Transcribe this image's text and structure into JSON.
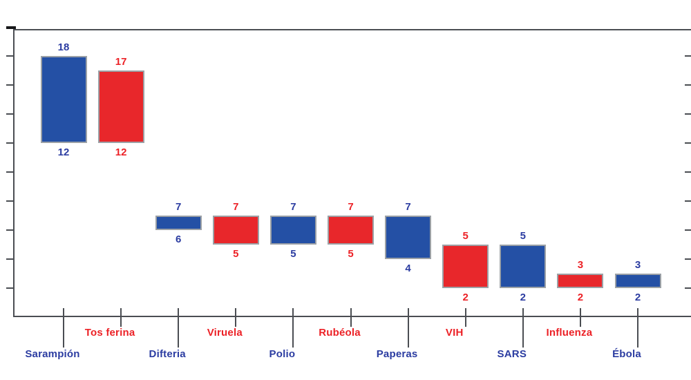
{
  "chart": {
    "background": "#ffffff",
    "frame_color": "#4a4d52",
    "bar_border_color": "#9ca1a6",
    "bar_blue": "#2450a5",
    "bar_red": "#e8272b",
    "text_blue": "#2b3ca1",
    "text_red": "#ec2126"
  },
  "chart_data": {
    "type": "bar",
    "subtype": "floating_range_columns",
    "title": "",
    "xlabel": "",
    "ylabel": "",
    "ylim": [
      0,
      19.8
    ],
    "yticks": [
      2,
      4,
      6,
      8,
      10,
      12,
      14,
      16,
      18
    ],
    "ytick_labels_visible": false,
    "xtick_labels_visible": true,
    "grid": false,
    "legend_position": "none",
    "categories": [
      "Sarampión",
      "Tos ferina",
      "Difteria",
      "Viruela",
      "Polio",
      "Rubéola",
      "Paperas",
      "VIH",
      "SARS",
      "Influenza",
      "Ébola"
    ],
    "series": [
      {
        "name": "range",
        "bars": [
          {
            "label": "Sarampión",
            "low": 12,
            "high": 18,
            "color": "blue",
            "low_text": "12",
            "high_text": "18"
          },
          {
            "label": "Tos ferina",
            "low": 12,
            "high": 17,
            "color": "red",
            "low_text": "12",
            "high_text": "17"
          },
          {
            "label": "Difteria",
            "low": 6,
            "high": 7,
            "color": "blue",
            "low_text": "6",
            "high_text": "7"
          },
          {
            "label": "Viruela",
            "low": 5,
            "high": 7,
            "color": "red",
            "low_text": "5",
            "high_text": "7"
          },
          {
            "label": "Polio",
            "low": 5,
            "high": 7,
            "color": "blue",
            "low_text": "5",
            "high_text": "7"
          },
          {
            "label": "Rubéola",
            "low": 5,
            "high": 7,
            "color": "red",
            "low_text": "5",
            "high_text": "7"
          },
          {
            "label": "Paperas",
            "low": 4,
            "high": 7,
            "color": "blue",
            "low_text": "4",
            "high_text": "7"
          },
          {
            "label": "VIH",
            "low": 2,
            "high": 5,
            "color": "red",
            "low_text": "2",
            "high_text": "5"
          },
          {
            "label": "SARS",
            "low": 2,
            "high": 5,
            "color": "blue",
            "low_text": "2",
            "high_text": "5"
          },
          {
            "label": "Influenza",
            "low": 2,
            "high": 3,
            "color": "red",
            "low_text": "2",
            "high_text": "3"
          },
          {
            "label": "Ébola",
            "low": 2,
            "high": 3,
            "color": "blue",
            "low_text": "2",
            "high_text": "3"
          }
        ]
      }
    ]
  }
}
